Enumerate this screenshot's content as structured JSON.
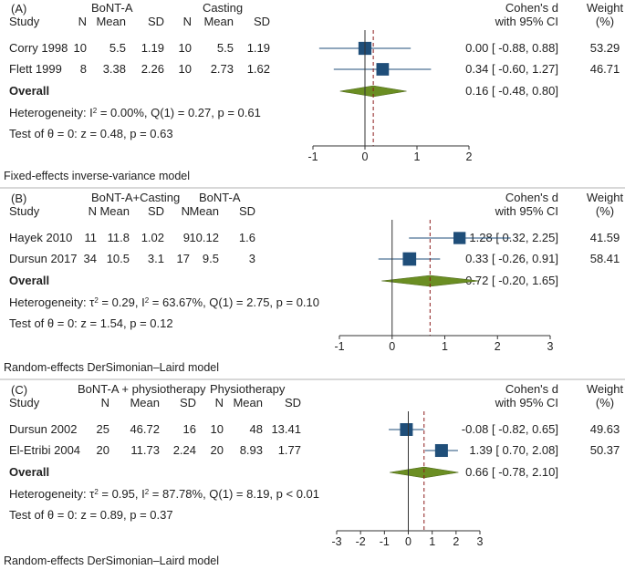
{
  "chart_data": [
    {
      "type": "forest",
      "panel_label": "(A)",
      "group1_header": "BoNT-A",
      "group2_header": "Casting",
      "column_headers": {
        "study": "Study",
        "n1": "N",
        "mean1": "Mean",
        "sd1": "SD",
        "n2": "N",
        "mean2": "Mean",
        "sd2": "SD"
      },
      "effect_header": [
        "Cohen's d",
        "with 95% CI"
      ],
      "weight_header": [
        "Weight",
        "(%)"
      ],
      "studies": [
        {
          "name": "Corry 1998",
          "n1": "10",
          "mean1": "5.5",
          "sd1": "1.19",
          "n2": "10",
          "mean2": "5.5",
          "sd2": "1.19",
          "d": 0.0,
          "lo": -0.88,
          "hi": 0.88,
          "ci_text": "0.00 [ -0.88,  0.88]",
          "weight": 53.29,
          "weight_text": "53.29"
        },
        {
          "name": "Flett 1999",
          "n1": "8",
          "mean1": "3.38",
          "sd1": "2.26",
          "n2": "10",
          "mean2": "2.73",
          "sd2": "1.62",
          "d": 0.34,
          "lo": -0.6,
          "hi": 1.27,
          "ci_text": "0.34 [ -0.60,  1.27]",
          "weight": 46.71,
          "weight_text": "46.71"
        }
      ],
      "overall": {
        "label": "Overall",
        "d": 0.16,
        "lo": -0.48,
        "hi": 0.8,
        "ci_text": "0.16 [ -0.48,  0.80]"
      },
      "heterogeneity": [
        "Heterogeneity: I",
        "2",
        " = 0.00%, Q(1) = 0.27, p = 0.61"
      ],
      "test": "Test of θ = 0: z = 0.48, p = 0.63",
      "xlim": [
        -1,
        2
      ],
      "ticks": [
        -1,
        0,
        1,
        2
      ],
      "model": "Fixed-effects inverse-variance model"
    },
    {
      "type": "forest",
      "panel_label": "(B)",
      "group1_header": "BoNT-A+Casting",
      "group2_header": "BoNT-A",
      "column_headers": {
        "study": "Study",
        "n1": "N",
        "mean1": "Mean",
        "sd1": "SD",
        "n2": "N",
        "mean2": "Mean",
        "sd2": "SD"
      },
      "effect_header": [
        "Cohen's d",
        "with 95% CI"
      ],
      "weight_header": [
        "Weight",
        "(%)"
      ],
      "studies": [
        {
          "name": "Hayek 2010",
          "n1": "11",
          "mean1": "11.8",
          "sd1": "1.02",
          "n2": "9",
          "mean2": "10.12",
          "sd2": "1.6",
          "d": 1.28,
          "lo": 0.32,
          "hi": 2.25,
          "ci_text": "1.28 [  0.32,  2.25]",
          "weight": 41.59,
          "weight_text": "41.59"
        },
        {
          "name": "Dursun 2017",
          "n1": "34",
          "mean1": "10.5",
          "sd1": "3.1",
          "n2": "17",
          "mean2": "9.5",
          "sd2": "3",
          "d": 0.33,
          "lo": -0.26,
          "hi": 0.91,
          "ci_text": "0.33 [ -0.26,  0.91]",
          "weight": 58.41,
          "weight_text": "58.41"
        }
      ],
      "overall": {
        "label": "Overall",
        "d": 0.72,
        "lo": -0.2,
        "hi": 1.65,
        "ci_text": "0.72 [ -0.20,  1.65]"
      },
      "heterogeneity": [
        "Heterogeneity: τ",
        "2",
        " = 0.29, I",
        "2",
        " = 63.67%, Q(1) = 2.75, p = 0.10"
      ],
      "test": "Test of θ = 0: z = 1.54, p = 0.12",
      "xlim": [
        -1,
        3
      ],
      "ticks": [
        -1,
        0,
        1,
        2,
        3
      ],
      "model": "Random-effects DerSimonian–Laird model"
    },
    {
      "type": "forest",
      "panel_label": "(C)",
      "group1_header": "BoNT-A + physiotherapy",
      "group2_header": "Physiotherapy",
      "column_headers": {
        "study": "Study",
        "n1": "N",
        "mean1": "Mean",
        "sd1": "SD",
        "n2": "N",
        "mean2": "Mean",
        "sd2": "SD"
      },
      "effect_header": [
        "Cohen's d",
        "with 95% CI"
      ],
      "weight_header": [
        "Weight",
        "(%)"
      ],
      "studies": [
        {
          "name": "Dursun 2002",
          "n1": "25",
          "mean1": "46.72",
          "sd1": "16",
          "n2": "10",
          "mean2": "48",
          "sd2": "13.41",
          "d": -0.08,
          "lo": -0.82,
          "hi": 0.65,
          "ci_text": "-0.08 [ -0.82,  0.65]",
          "weight": 49.63,
          "weight_text": "49.63"
        },
        {
          "name": "El-Etribi 2004",
          "n1": "20",
          "mean1": "11.73",
          "sd1": "2.24",
          "n2": "20",
          "mean2": "8.93",
          "sd2": "1.77",
          "d": 1.39,
          "lo": 0.7,
          "hi": 2.08,
          "ci_text": "1.39 [  0.70,  2.08]",
          "weight": 50.37,
          "weight_text": "50.37"
        }
      ],
      "overall": {
        "label": "Overall",
        "d": 0.66,
        "lo": -0.78,
        "hi": 2.1,
        "ci_text": "0.66 [ -0.78,  2.10]"
      },
      "heterogeneity": [
        "Heterogeneity: τ",
        "2",
        " = 0.95, I",
        "2",
        " = 87.78%, Q(1) = 8.19, p < 0.01"
      ],
      "test": "Test of θ = 0: z = 0.89, p = 0.37",
      "xlim": [
        -3,
        3
      ],
      "ticks": [
        -3,
        -2,
        -1,
        0,
        1,
        2,
        3
      ],
      "model": "Random-effects DerSimonian–Laird model"
    }
  ],
  "colors": {
    "marker": "#1f4e79",
    "diamond": "#6b8e23",
    "ref_line": "#8b1a1a",
    "text": "#222222",
    "divider": "#999999"
  }
}
